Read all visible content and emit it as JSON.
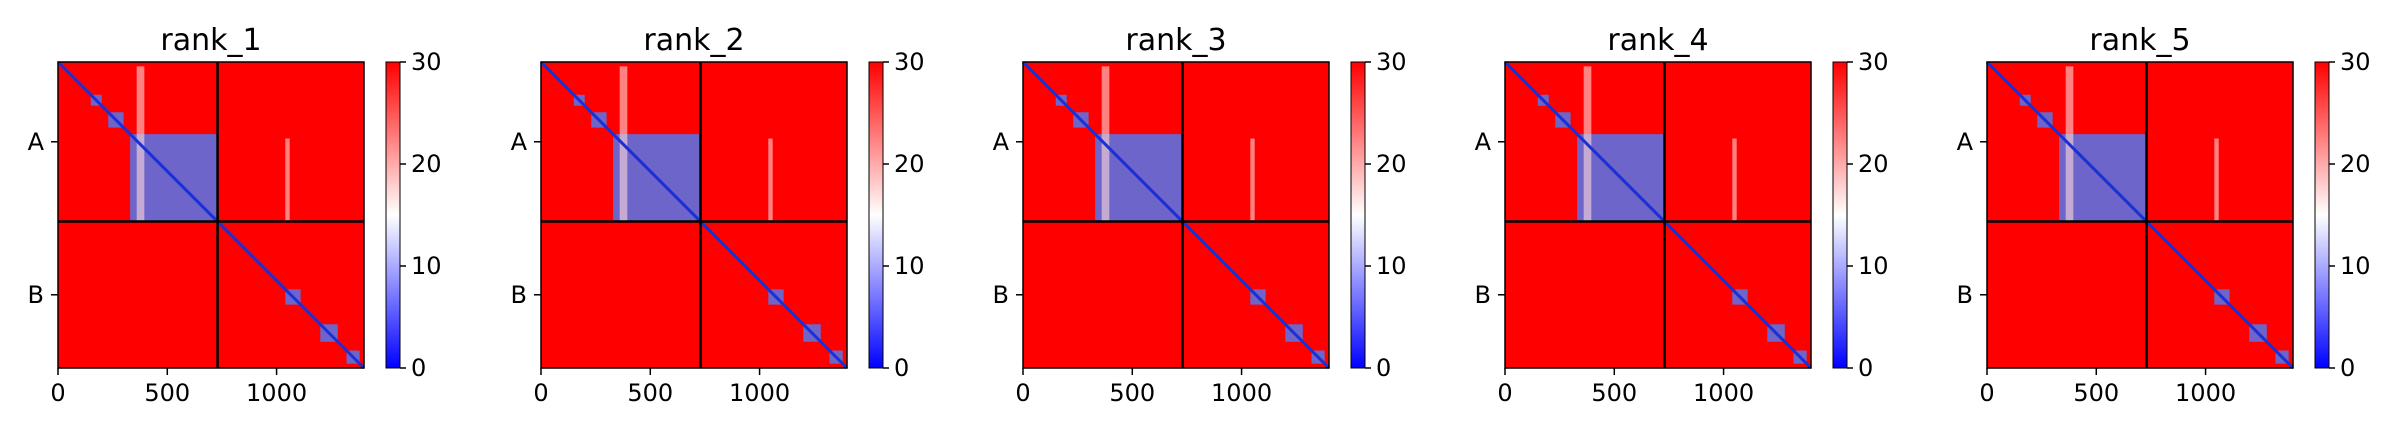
{
  "figure": {
    "background": "#ffffff"
  },
  "chart_data": [
    {
      "type": "heatmap",
      "title": "rank_1",
      "xlim": [
        0,
        1400
      ],
      "x_ticks": [
        0,
        500,
        1000
      ],
      "y_tick_labels": [
        "A",
        "B"
      ],
      "chain_boundary": 730,
      "colorbar": {
        "ticks": [
          0,
          10,
          20,
          30
        ],
        "vmin": 0,
        "vmax": 30,
        "colors": [
          "#0000ff",
          "#ffffff",
          "#ff0000"
        ]
      },
      "blue_blocks": [
        [
          150,
          200
        ],
        [
          230,
          300
        ],
        [
          330,
          730
        ],
        [
          1040,
          1110
        ],
        [
          1200,
          1280
        ],
        [
          1320,
          1380
        ]
      ]
    },
    {
      "type": "heatmap",
      "title": "rank_2",
      "xlim": [
        0,
        1400
      ],
      "x_ticks": [
        0,
        500,
        1000
      ],
      "y_tick_labels": [
        "A",
        "B"
      ],
      "chain_boundary": 730,
      "colorbar": {
        "ticks": [
          0,
          10,
          20,
          30
        ],
        "vmin": 0,
        "vmax": 30,
        "colors": [
          "#0000ff",
          "#ffffff",
          "#ff0000"
        ]
      },
      "blue_blocks": [
        [
          150,
          200
        ],
        [
          230,
          300
        ],
        [
          330,
          730
        ],
        [
          1040,
          1110
        ],
        [
          1200,
          1280
        ],
        [
          1320,
          1380
        ]
      ]
    },
    {
      "type": "heatmap",
      "title": "rank_3",
      "xlim": [
        0,
        1400
      ],
      "x_ticks": [
        0,
        500,
        1000
      ],
      "y_tick_labels": [
        "A",
        "B"
      ],
      "chain_boundary": 730,
      "colorbar": {
        "ticks": [
          0,
          10,
          20,
          30
        ],
        "vmin": 0,
        "vmax": 30,
        "colors": [
          "#0000ff",
          "#ffffff",
          "#ff0000"
        ]
      },
      "blue_blocks": [
        [
          150,
          200
        ],
        [
          230,
          300
        ],
        [
          330,
          730
        ],
        [
          1040,
          1110
        ],
        [
          1200,
          1280
        ],
        [
          1320,
          1380
        ]
      ]
    },
    {
      "type": "heatmap",
      "title": "rank_4",
      "xlim": [
        0,
        1400
      ],
      "x_ticks": [
        0,
        500,
        1000
      ],
      "y_tick_labels": [
        "A",
        "B"
      ],
      "chain_boundary": 730,
      "colorbar": {
        "ticks": [
          0,
          10,
          20,
          30
        ],
        "vmin": 0,
        "vmax": 30,
        "colors": [
          "#0000ff",
          "#ffffff",
          "#ff0000"
        ]
      },
      "blue_blocks": [
        [
          150,
          200
        ],
        [
          230,
          300
        ],
        [
          330,
          730
        ],
        [
          1040,
          1110
        ],
        [
          1200,
          1280
        ],
        [
          1320,
          1380
        ]
      ]
    },
    {
      "type": "heatmap",
      "title": "rank_5",
      "xlim": [
        0,
        1400
      ],
      "x_ticks": [
        0,
        500,
        1000
      ],
      "y_tick_labels": [
        "A",
        "B"
      ],
      "chain_boundary": 730,
      "colorbar": {
        "ticks": [
          0,
          10,
          20,
          30
        ],
        "vmin": 0,
        "vmax": 30,
        "colors": [
          "#0000ff",
          "#ffffff",
          "#ff0000"
        ]
      },
      "blue_blocks": [
        [
          150,
          200
        ],
        [
          230,
          300
        ],
        [
          330,
          730
        ],
        [
          1040,
          1110
        ],
        [
          1200,
          1280
        ],
        [
          1320,
          1380
        ]
      ]
    }
  ]
}
